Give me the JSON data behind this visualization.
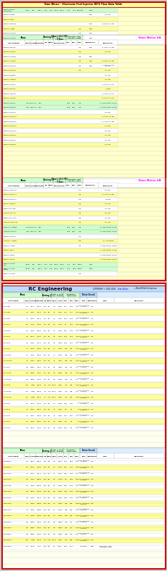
{
  "outer_bg": "#c8c8c8",
  "sw_section_bg": "#ffffcc",
  "rc_section_bg": "#fffff0",
  "border_red": "#cc0000",
  "header_green": "#ccffcc",
  "header_yellow": "#ffff99",
  "header_blue": "#aaccff",
  "row_white": "#ffffff",
  "row_yellow": "#ffff99",
  "row_green": "#ccffcc",
  "row_cyan": "#ccffff",
  "row_gray": "#dddddd",
  "text_pink": "#ff00ff",
  "text_blue": "#0000cc",
  "text_black": "#000000",
  "text_red": "#cc0000",
  "sw_title": "Stan Weiss' - Electronic Fuel Injector (EFI) Flow Data Table",
  "rc_title": "RC Engineering",
  "rc_copy": "COPYRIGHT © 2002-2018",
  "rc_link": "Stan Weiss",
  "rc_sub": "— World Wide Enterprises"
}
